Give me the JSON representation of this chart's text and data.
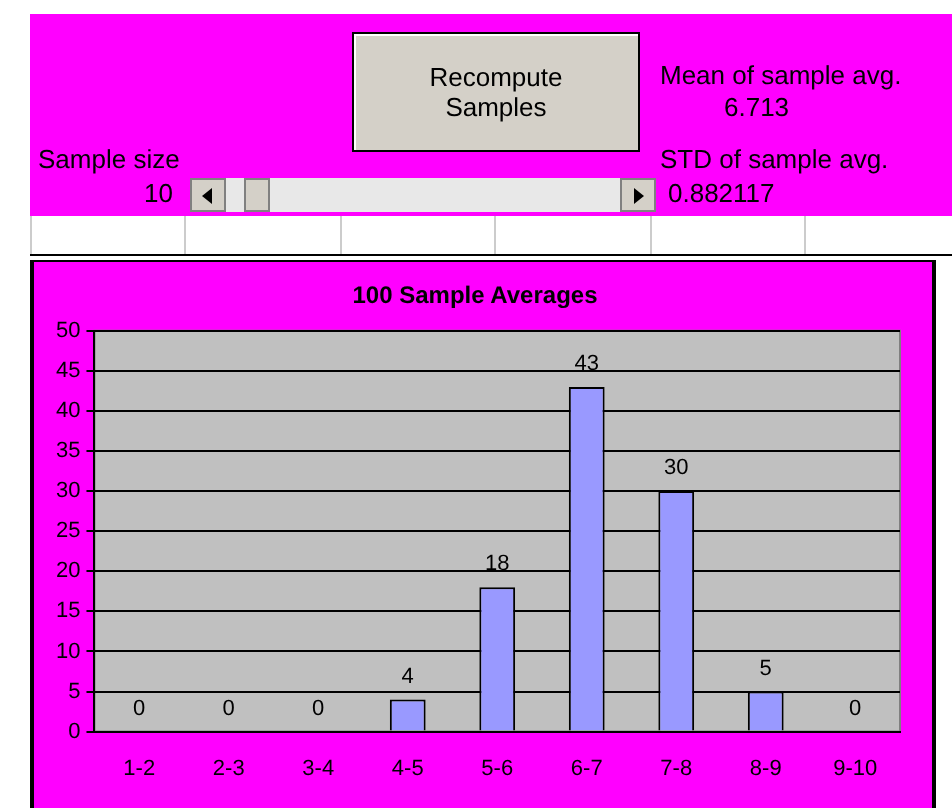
{
  "chart_data": {
    "type": "bar",
    "title": "100 Sample Averages",
    "categories": [
      "1-2",
      "2-3",
      "3-4",
      "4-5",
      "5-6",
      "6-7",
      "7-8",
      "8-9",
      "9-10"
    ],
    "values": [
      0,
      0,
      0,
      4,
      18,
      43,
      30,
      5,
      0
    ],
    "color": "#9999ff",
    "ylim": [
      0,
      50
    ],
    "yticks": [
      0,
      5,
      10,
      15,
      20,
      25,
      30,
      35,
      40,
      45,
      50
    ],
    "grid": "y",
    "data_labels": true,
    "annotations": [
      "Recompute Samples",
      "Sample size",
      "10",
      "Mean of sample avg.",
      "6.713",
      "STD of sample avg.",
      "0.882117"
    ]
  }
}
